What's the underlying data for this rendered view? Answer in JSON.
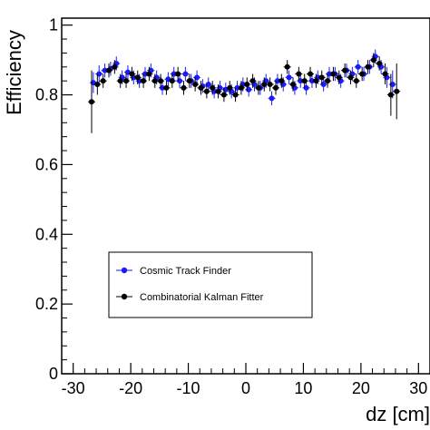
{
  "chart_data": {
    "type": "scatter",
    "xlabel": "dz [cm]",
    "ylabel": "Efficiency",
    "xlim": [
      -32,
      32
    ],
    "ylim": [
      0,
      1.02
    ],
    "x_ticks": [
      "-30",
      "-20",
      "-10",
      "0",
      "10",
      "20",
      "30"
    ],
    "x_tick_values": [
      -30,
      -20,
      -10,
      0,
      10,
      20,
      30
    ],
    "y_ticks": [
      "0",
      "0.2",
      "0.4",
      "0.6",
      "0.8",
      "1"
    ],
    "y_tick_values": [
      0,
      0.2,
      0.4,
      0.6,
      0.8,
      1.0
    ],
    "grid": false,
    "legend_position": "lower-left",
    "series": [
      {
        "name": "Cosmic Track Finder",
        "color": "#1a1aff",
        "x": [
          -26.5,
          -25.5,
          -24.5,
          -23.5,
          -22.5,
          -21.5,
          -20.5,
          -19.5,
          -18.5,
          -17.5,
          -16.5,
          -15.5,
          -14.5,
          -13.5,
          -12.5,
          -11.5,
          -10.5,
          -9.5,
          -8.5,
          -7.5,
          -6.5,
          -5.5,
          -4.5,
          -3.5,
          -2.5,
          -1.5,
          -0.5,
          0.5,
          1.5,
          2.5,
          3.5,
          4.5,
          5.5,
          6.5,
          7.5,
          8.5,
          9.5,
          10.5,
          11.5,
          12.5,
          13.5,
          14.5,
          15.5,
          16.5,
          17.5,
          18.5,
          19.5,
          20.5,
          21.5,
          22.5,
          23.5,
          24.5,
          25.5
        ],
        "y": [
          0.835,
          0.86,
          0.87,
          0.875,
          0.89,
          0.85,
          0.865,
          0.85,
          0.84,
          0.86,
          0.87,
          0.85,
          0.82,
          0.845,
          0.86,
          0.84,
          0.86,
          0.84,
          0.85,
          0.825,
          0.83,
          0.81,
          0.82,
          0.815,
          0.81,
          0.82,
          0.83,
          0.815,
          0.83,
          0.82,
          0.84,
          0.79,
          0.84,
          0.83,
          0.85,
          0.82,
          0.84,
          0.82,
          0.84,
          0.85,
          0.83,
          0.86,
          0.86,
          0.84,
          0.87,
          0.86,
          0.88,
          0.86,
          0.88,
          0.91,
          0.88,
          0.85,
          0.83
        ],
        "err": [
          0.03,
          0.025,
          0.02,
          0.02,
          0.02,
          0.02,
          0.02,
          0.02,
          0.02,
          0.02,
          0.02,
          0.02,
          0.02,
          0.02,
          0.02,
          0.02,
          0.02,
          0.02,
          0.02,
          0.02,
          0.02,
          0.02,
          0.02,
          0.02,
          0.02,
          0.02,
          0.02,
          0.02,
          0.02,
          0.02,
          0.02,
          0.02,
          0.02,
          0.02,
          0.02,
          0.02,
          0.02,
          0.02,
          0.02,
          0.02,
          0.02,
          0.02,
          0.02,
          0.02,
          0.02,
          0.02,
          0.02,
          0.02,
          0.02,
          0.02,
          0.02,
          0.03,
          0.04
        ]
      },
      {
        "name": "Combinatorial Kalman Fitter",
        "color": "#000000",
        "x": [
          -26.8,
          -25.8,
          -24.8,
          -23.8,
          -22.8,
          -21.8,
          -20.8,
          -19.8,
          -18.8,
          -17.8,
          -16.8,
          -15.8,
          -14.8,
          -13.8,
          -12.8,
          -11.8,
          -10.8,
          -9.8,
          -8.8,
          -7.8,
          -6.8,
          -5.8,
          -4.8,
          -3.8,
          -2.8,
          -1.8,
          -0.8,
          0.2,
          1.2,
          2.2,
          3.2,
          4.2,
          5.2,
          6.2,
          7.2,
          8.2,
          9.2,
          10.2,
          11.2,
          12.2,
          13.2,
          14.2,
          15.2,
          16.2,
          17.2,
          18.2,
          19.2,
          20.2,
          21.2,
          22.2,
          23.2,
          24.2,
          25.2,
          26.2
        ],
        "y": [
          0.78,
          0.83,
          0.84,
          0.87,
          0.88,
          0.84,
          0.84,
          0.86,
          0.85,
          0.84,
          0.86,
          0.84,
          0.84,
          0.82,
          0.84,
          0.86,
          0.82,
          0.84,
          0.83,
          0.82,
          0.81,
          0.82,
          0.81,
          0.8,
          0.82,
          0.8,
          0.82,
          0.83,
          0.84,
          0.82,
          0.83,
          0.83,
          0.82,
          0.84,
          0.88,
          0.83,
          0.86,
          0.84,
          0.86,
          0.84,
          0.85,
          0.84,
          0.86,
          0.85,
          0.87,
          0.85,
          0.84,
          0.86,
          0.88,
          0.9,
          0.89,
          0.86,
          0.8,
          0.81
        ],
        "err": [
          0.09,
          0.03,
          0.02,
          0.02,
          0.02,
          0.02,
          0.02,
          0.02,
          0.02,
          0.02,
          0.02,
          0.02,
          0.02,
          0.02,
          0.02,
          0.02,
          0.02,
          0.02,
          0.02,
          0.02,
          0.02,
          0.02,
          0.02,
          0.02,
          0.02,
          0.02,
          0.02,
          0.02,
          0.02,
          0.02,
          0.02,
          0.02,
          0.02,
          0.02,
          0.02,
          0.02,
          0.02,
          0.02,
          0.02,
          0.02,
          0.02,
          0.02,
          0.02,
          0.02,
          0.02,
          0.02,
          0.02,
          0.02,
          0.02,
          0.02,
          0.02,
          0.03,
          0.06,
          0.08
        ]
      }
    ]
  }
}
